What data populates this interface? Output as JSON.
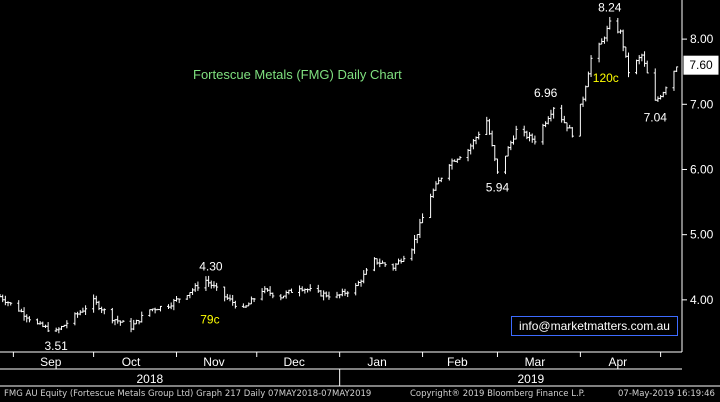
{
  "chart_data": {
    "type": "ohlc",
    "title": "Fortescue Metals (FMG) Daily Chart",
    "y_ticks": [
      "4.00",
      "5.00",
      "6.00",
      "7.00",
      "8.00"
    ],
    "ylim": [
      3.2,
      8.6
    ],
    "x_months": [
      "Sep",
      "Oct",
      "Nov",
      "Dec",
      "Jan",
      "Feb",
      "Mar",
      "Apr"
    ],
    "x_years": [
      "2018",
      "2019"
    ],
    "last_price": "7.60",
    "grid": false,
    "series": [
      {
        "date": "2018-08-27",
        "close": 4.05
      },
      {
        "date": "2018-09-03",
        "close": 3.85
      },
      {
        "date": "2018-09-10",
        "close": 3.62
      },
      {
        "date": "2018-09-17",
        "close": 3.51
      },
      {
        "date": "2018-09-24",
        "close": 3.75
      },
      {
        "date": "2018-10-01",
        "close": 3.98
      },
      {
        "date": "2018-10-08",
        "close": 3.72
      },
      {
        "date": "2018-10-15",
        "close": 3.58
      },
      {
        "date": "2018-10-22",
        "close": 3.85
      },
      {
        "date": "2018-10-29",
        "close": 3.92
      },
      {
        "date": "2018-11-05",
        "close": 4.1
      },
      {
        "date": "2018-11-12",
        "close": 4.3
      },
      {
        "date": "2018-11-19",
        "close": 4.05
      },
      {
        "date": "2018-11-26",
        "close": 3.85
      },
      {
        "date": "2018-12-03",
        "close": 4.15
      },
      {
        "date": "2018-12-10",
        "close": 4.05
      },
      {
        "date": "2018-12-17",
        "close": 4.2
      },
      {
        "date": "2018-12-24",
        "close": 4.1
      },
      {
        "date": "2018-12-31",
        "close": 4.05
      },
      {
        "date": "2019-01-07",
        "close": 4.2
      },
      {
        "date": "2019-01-14",
        "close": 4.6
      },
      {
        "date": "2019-01-21",
        "close": 4.5
      },
      {
        "date": "2019-01-28",
        "close": 4.8
      },
      {
        "date": "2019-02-04",
        "close": 5.6
      },
      {
        "date": "2019-02-11",
        "close": 6.1
      },
      {
        "date": "2019-02-18",
        "close": 6.3
      },
      {
        "date": "2019-02-25",
        "close": 6.75
      },
      {
        "date": "2019-03-01",
        "close": 5.94
      },
      {
        "date": "2019-03-08",
        "close": 6.6
      },
      {
        "date": "2019-03-15",
        "close": 6.45
      },
      {
        "date": "2019-03-22",
        "close": 6.96
      },
      {
        "date": "2019-03-29",
        "close": 6.55
      },
      {
        "date": "2019-04-02",
        "close": 7.1
      },
      {
        "date": "2019-04-05",
        "close": 7.7
      },
      {
        "date": "2019-04-09",
        "close": 7.95
      },
      {
        "date": "2019-04-12",
        "close": 8.24
      },
      {
        "date": "2019-04-16",
        "close": 8.1
      },
      {
        "date": "2019-04-19",
        "close": 7.5
      },
      {
        "date": "2019-04-24",
        "close": 7.75
      },
      {
        "date": "2019-04-29",
        "close": 7.04
      },
      {
        "date": "2019-05-02",
        "close": 7.2
      },
      {
        "date": "2019-05-07",
        "close": 7.6
      }
    ],
    "annotations": [
      {
        "text": "3.51",
        "date": "2018-09-17",
        "value": 3.51,
        "color": "#ffffff"
      },
      {
        "text": "4.30",
        "date": "2018-11-12",
        "value": 4.3,
        "color": "#ffffff"
      },
      {
        "text": "79c",
        "date": "2018-11-12",
        "value": 3.85,
        "color": "#ffff00"
      },
      {
        "text": "5.94",
        "date": "2019-03-01",
        "value": 5.94,
        "color": "#ffffff"
      },
      {
        "text": "6.96",
        "date": "2019-03-22",
        "value": 6.96,
        "color": "#ffffff"
      },
      {
        "text": "8.24",
        "date": "2019-04-12",
        "value": 8.24,
        "color": "#ffffff"
      },
      {
        "text": "120c",
        "date": "2019-04-12",
        "value": 7.4,
        "color": "#ffff00"
      },
      {
        "text": "7.04",
        "date": "2019-04-29",
        "value": 7.04,
        "color": "#ffffff"
      }
    ]
  },
  "contact": "info@marketmatters.com.au",
  "footer": {
    "left": "FMG AU Equity (Fortescue Metals Group Ltd) Graph 217  Daily 07MAY2018-07MAY2019",
    "copyright": "Copyright® 2019 Bloomberg Finance L.P.",
    "timestamp": "07-May-2019 16:19:46"
  },
  "colors": {
    "background": "#000000",
    "price": "#ffffff",
    "title": "#7fe07f",
    "annotation": "#ffff00",
    "axis": "#ffffff"
  }
}
